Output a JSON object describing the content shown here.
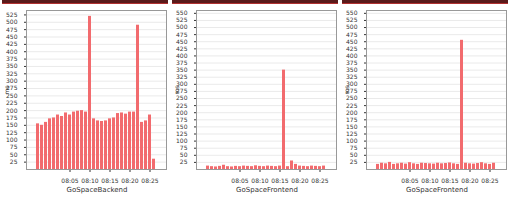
{
  "chart_data": [
    {
      "type": "bar",
      "title": "GoSpaceBackend",
      "y_label": "ms",
      "color": "#f26b6e",
      "grid": true,
      "categories": [
        null,
        null,
        null,
        null,
        null,
        null,
        null,
        null,
        "08:05",
        null,
        null,
        null,
        null,
        "08:10",
        null,
        null,
        null,
        null,
        "08:15",
        null,
        null,
        null,
        null,
        "08:20",
        null,
        null,
        null,
        null,
        "08:25",
        null
      ],
      "values": [
        155,
        150,
        160,
        172,
        175,
        185,
        180,
        192,
        185,
        195,
        198,
        200,
        195,
        520,
        172,
        165,
        163,
        165,
        172,
        175,
        190,
        192,
        188,
        195,
        195,
        490,
        160,
        165,
        185,
        35
      ],
      "ylim": [
        0,
        540
      ],
      "yticks": [
        25,
        50,
        75,
        100,
        125,
        150,
        175,
        200,
        225,
        250,
        275,
        300,
        325,
        350,
        375,
        400,
        425,
        450,
        475,
        500,
        525
      ]
    },
    {
      "type": "bar",
      "title": "GoSpaceFrontend",
      "y_label": "ms",
      "color": "#f26b6e",
      "grid": true,
      "categories": [
        null,
        null,
        null,
        null,
        null,
        null,
        null,
        null,
        "08:05",
        null,
        null,
        null,
        null,
        "08:10",
        null,
        null,
        null,
        null,
        "08:15",
        null,
        null,
        null,
        null,
        "08:20",
        null,
        null,
        null,
        null,
        "08:25",
        null
      ],
      "values": [
        12,
        10,
        9,
        11,
        15,
        10,
        9,
        11,
        10,
        12,
        11,
        10,
        13,
        11,
        10,
        12,
        11,
        10,
        12,
        350,
        10,
        30,
        18,
        12,
        11,
        10,
        12,
        11,
        10,
        12
      ],
      "ylim": [
        0,
        560
      ],
      "yticks": [
        25,
        50,
        75,
        100,
        125,
        150,
        175,
        200,
        225,
        250,
        275,
        300,
        325,
        350,
        375,
        400,
        425,
        450,
        475,
        500,
        525,
        550
      ]
    },
    {
      "type": "bar",
      "title": "GoSpaceFrontend",
      "y_label": "ms",
      "color": "#f26b6e",
      "grid": true,
      "categories": [
        null,
        null,
        null,
        null,
        null,
        null,
        null,
        null,
        "08:05",
        null,
        null,
        null,
        null,
        "08:10",
        null,
        null,
        null,
        null,
        "08:15",
        null,
        null,
        null,
        null,
        "08:20",
        null,
        null,
        null,
        null,
        "08:25",
        null
      ],
      "values": [
        18,
        22,
        20,
        25,
        18,
        20,
        22,
        19,
        24,
        20,
        18,
        22,
        21,
        20,
        19,
        22,
        20,
        21,
        23,
        20,
        18,
        455,
        22,
        20,
        19,
        21,
        24,
        20,
        18,
        22
      ],
      "ylim": [
        0,
        560
      ],
      "yticks": [
        25,
        50,
        75,
        100,
        125,
        150,
        175,
        200,
        225,
        250,
        275,
        300,
        325,
        350,
        375,
        400,
        425,
        450,
        475,
        500,
        525,
        550
      ]
    }
  ]
}
